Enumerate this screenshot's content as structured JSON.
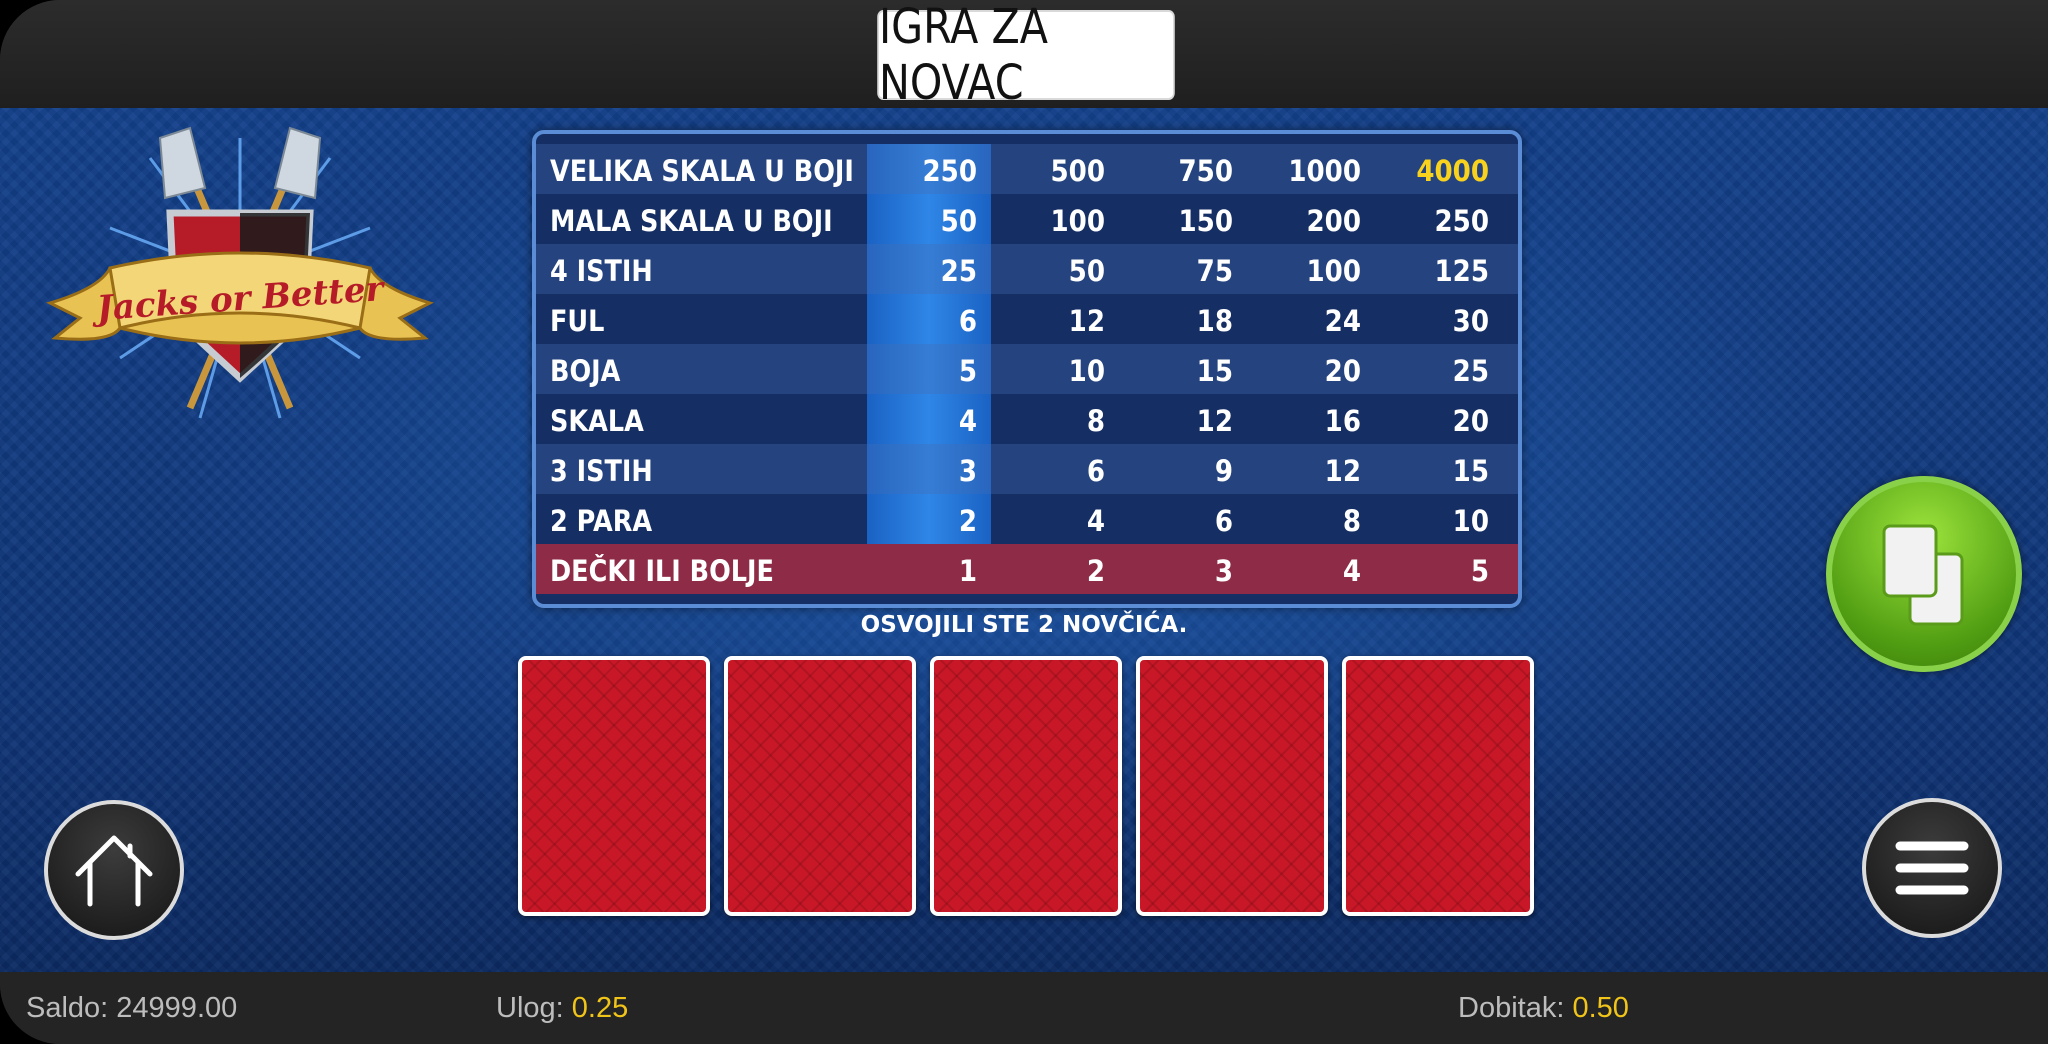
{
  "header": {
    "title": "IGRA ZA NOVAC"
  },
  "logo": {
    "text": "Jacks or Better"
  },
  "paytable": {
    "rows": [
      {
        "name": "VELIKA SKALA U BOJI",
        "values": [
          "250",
          "500",
          "750",
          "1000",
          "4000"
        ]
      },
      {
        "name": "MALA SKALA U BOJI",
        "values": [
          "50",
          "100",
          "150",
          "200",
          "250"
        ]
      },
      {
        "name": "4 ISTIH",
        "values": [
          "25",
          "50",
          "75",
          "100",
          "125"
        ]
      },
      {
        "name": "FUL",
        "values": [
          "6",
          "12",
          "18",
          "24",
          "30"
        ]
      },
      {
        "name": "BOJA",
        "values": [
          "5",
          "10",
          "15",
          "20",
          "25"
        ]
      },
      {
        "name": "SKALA",
        "values": [
          "4",
          "8",
          "12",
          "16",
          "20"
        ]
      },
      {
        "name": "3 ISTIH",
        "values": [
          "3",
          "6",
          "9",
          "12",
          "15"
        ]
      },
      {
        "name": "2 PARA",
        "values": [
          "2",
          "4",
          "6",
          "8",
          "10"
        ]
      },
      {
        "name": "DEČKI ILI BOLJE",
        "values": [
          "1",
          "2",
          "3",
          "4",
          "5"
        ]
      }
    ],
    "selected_column": 1,
    "winning_row": 9
  },
  "message": "OSVOJILI STE 2 NOVČIĆA.",
  "cards": [
    "back",
    "back",
    "back",
    "back",
    "back"
  ],
  "buttons": {
    "home": "home-icon",
    "deal": "cards-icon",
    "menu": "hamburger-icon"
  },
  "status": {
    "saldo_label": "Saldo:",
    "saldo_value": "24999.00",
    "ulog_label": "Ulog:",
    "ulog_value": "0.25",
    "dobitak_label": "Dobitak:",
    "dobitak_value": "0.50"
  },
  "colors": {
    "accent_yellow": "#f0c419",
    "deal_green": "#6cbf1e",
    "card_red": "#c81726"
  }
}
